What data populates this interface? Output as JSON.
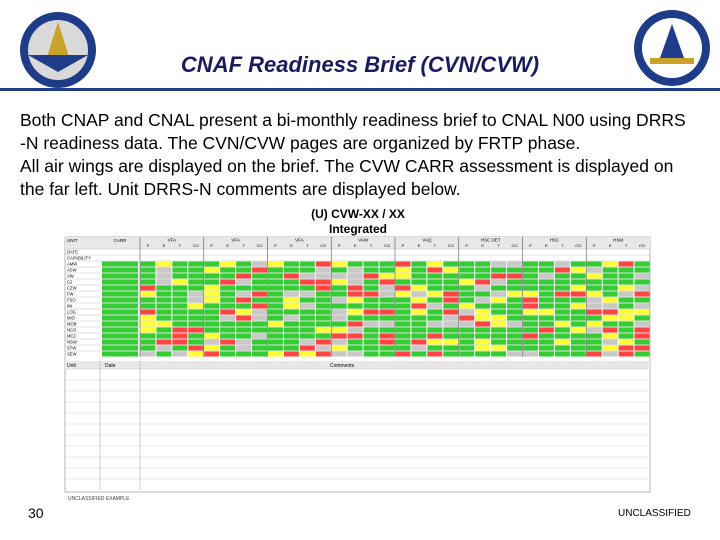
{
  "header": {
    "title": "CNAF Readiness Brief (CVN/CVW)"
  },
  "body": {
    "lines": [
      "Both CNAP and CNAL present a bi-monthly readiness brief to CNAL N00 using DRRS",
      "-N readiness data. The CVN/CVW pages are organized by FRTP phase.",
      "All air wings are displayed on the brief.  The CVW CARR assessment is displayed on",
      "the far left.  Unit DRRS-N comments are displayed below."
    ]
  },
  "table": {
    "title": "(U) CVW-XX / XX",
    "subtitle": "Integrated",
    "corner": "UNIT",
    "carr": "CARR",
    "groups": [
      "VFA",
      "VFA",
      "VFA",
      "VAW",
      "VAQ",
      "HSC DET",
      "HSC",
      "HSM"
    ],
    "subheaders": [
      "P",
      "E",
      "T",
      "CO"
    ],
    "rows": [
      "DATE",
      "CAPABILITY",
      "AMW",
      "ASW",
      "AW",
      "C2",
      "CZW",
      "FW",
      "FSO",
      "INI",
      "LOG",
      "MIO",
      "MOB",
      "NCO",
      "MCC",
      "NSW",
      "STW",
      "SEW"
    ],
    "comments_header": [
      "Unit",
      "Date",
      "Comments"
    ],
    "classification": "UNCLASSIFIED EXAMPLE"
  },
  "footer": {
    "page": "30",
    "classification": "UNCLASSIFIED"
  }
}
